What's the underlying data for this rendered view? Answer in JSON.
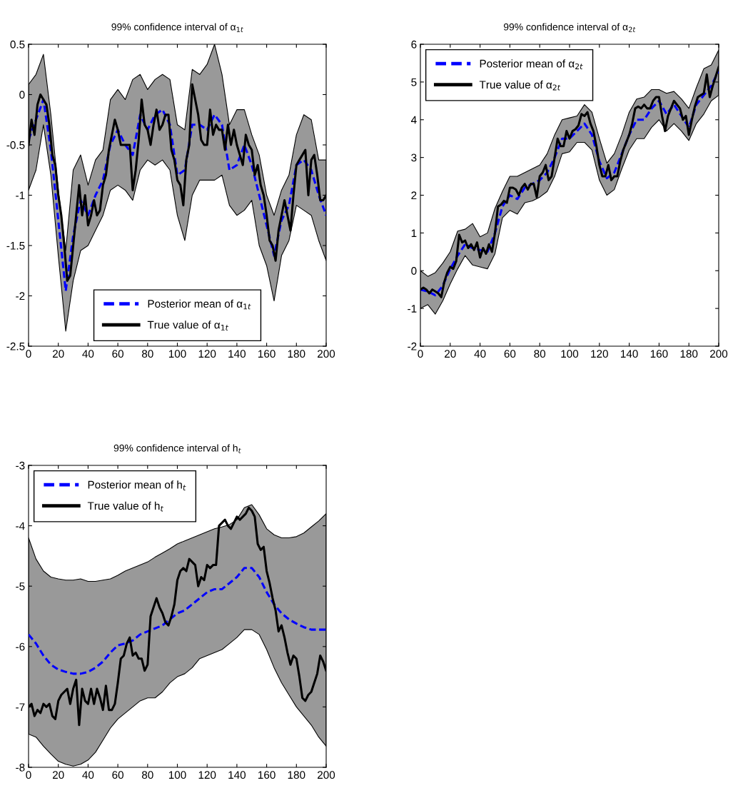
{
  "chart_data": [
    {
      "type": "line",
      "title": "99% confidence interval of α$_{1t}$",
      "xlim": [
        0,
        200
      ],
      "ylim": [
        -2.5,
        0.5
      ],
      "xticks": [
        0,
        20,
        40,
        60,
        80,
        100,
        120,
        140,
        160,
        180,
        200
      ],
      "yticks": [
        -2.5,
        -2,
        -1.5,
        -1,
        -0.5,
        0,
        0.5
      ],
      "legend": "bottom",
      "grid": false,
      "series": [
        {
          "name": "Posterior mean of α$_{1t}$",
          "color": "#0000ff",
          "line_style": "dashed",
          "x": [
            0,
            5,
            10,
            15,
            20,
            25,
            30,
            35,
            40,
            45,
            50,
            55,
            60,
            65,
            70,
            75,
            80,
            85,
            90,
            95,
            100,
            105,
            110,
            115,
            120,
            125,
            130,
            135,
            140,
            145,
            150,
            155,
            160,
            165,
            170,
            175,
            180,
            185,
            190,
            195,
            200
          ],
          "values": [
            -0.45,
            -0.25,
            -0.05,
            -0.55,
            -1.25,
            -1.95,
            -1.4,
            -1.05,
            -1.2,
            -1.0,
            -0.85,
            -0.5,
            -0.35,
            -0.5,
            -0.6,
            -0.2,
            -0.35,
            -0.2,
            -0.15,
            -0.3,
            -0.8,
            -0.75,
            -0.3,
            -0.3,
            -0.35,
            -0.2,
            -0.3,
            -0.75,
            -0.7,
            -0.5,
            -0.7,
            -1.0,
            -1.3,
            -1.6,
            -1.25,
            -1.1,
            -0.7,
            -0.65,
            -0.75,
            -1.0,
            -1.2
          ],
          "upper": [
            0.1,
            0.2,
            0.4,
            -0.2,
            -0.95,
            -1.55,
            -0.75,
            -0.6,
            -0.9,
            -0.65,
            -0.55,
            -0.05,
            0.05,
            -0.05,
            0.15,
            0.2,
            0.05,
            0.15,
            0.2,
            0.15,
            -0.3,
            -0.35,
            0.25,
            0.2,
            0.3,
            0.5,
            0.2,
            -0.3,
            -0.15,
            -0.15,
            -0.4,
            -0.6,
            -1.0,
            -1.2,
            -0.95,
            -0.8,
            -0.4,
            -0.2,
            -0.25,
            -0.65,
            -0.65
          ],
          "lower": [
            -0.95,
            -0.75,
            -0.3,
            -0.8,
            -1.6,
            -2.35,
            -1.85,
            -1.55,
            -1.5,
            -1.35,
            -1.2,
            -0.95,
            -0.9,
            -0.95,
            -1.05,
            -0.75,
            -0.65,
            -0.7,
            -0.65,
            -0.75,
            -1.2,
            -1.45,
            -1.0,
            -0.85,
            -0.85,
            -0.85,
            -0.8,
            -1.1,
            -1.2,
            -1.15,
            -1.05,
            -1.5,
            -1.7,
            -2.05,
            -1.6,
            -1.45,
            -1.1,
            -1.15,
            -1.2,
            -1.45,
            -1.65
          ]
        },
        {
          "name": "True value of α$_{1t}$",
          "color": "#000000",
          "line_style": "solid",
          "x": [
            0,
            2,
            4,
            6,
            8,
            10,
            12,
            14,
            16,
            18,
            20,
            22,
            24,
            26,
            28,
            30,
            32,
            34,
            36,
            38,
            40,
            42,
            44,
            46,
            48,
            50,
            52,
            54,
            56,
            58,
            60,
            62,
            64,
            66,
            68,
            70,
            72,
            74,
            76,
            78,
            80,
            82,
            84,
            86,
            88,
            90,
            92,
            94,
            96,
            98,
            100,
            102,
            104,
            106,
            108,
            110,
            112,
            114,
            116,
            118,
            120,
            122,
            124,
            126,
            128,
            130,
            132,
            134,
            136,
            138,
            140,
            142,
            144,
            146,
            148,
            150,
            152,
            154,
            156,
            158,
            160,
            162,
            164,
            166,
            168,
            170,
            172,
            174,
            176,
            178,
            180,
            182,
            184,
            186,
            188,
            190,
            192,
            194,
            196,
            198,
            200
          ],
          "values": [
            -0.5,
            -0.25,
            -0.4,
            -0.1,
            0.0,
            -0.05,
            -0.1,
            -0.3,
            -0.6,
            -0.7,
            -1.0,
            -1.2,
            -1.5,
            -1.85,
            -1.8,
            -1.5,
            -1.2,
            -0.9,
            -1.2,
            -1.0,
            -1.3,
            -1.2,
            -1.05,
            -1.2,
            -1.15,
            -0.9,
            -0.8,
            -0.55,
            -0.4,
            -0.25,
            -0.35,
            -0.5,
            -0.5,
            -0.5,
            -0.5,
            -0.95,
            -0.75,
            -0.45,
            -0.05,
            -0.3,
            -0.35,
            -0.5,
            -0.3,
            -0.15,
            -0.35,
            -0.3,
            -0.2,
            -0.2,
            -0.55,
            -0.65,
            -0.85,
            -0.9,
            -1.1,
            -0.65,
            -0.5,
            0.1,
            -0.05,
            -0.2,
            -0.45,
            -0.5,
            -0.5,
            -0.15,
            -0.4,
            -0.3,
            -0.35,
            -0.35,
            -0.55,
            -0.3,
            -0.5,
            -0.35,
            -0.5,
            -0.6,
            -0.7,
            -0.4,
            -0.5,
            -0.55,
            -0.8,
            -0.7,
            -0.9,
            -1.0,
            -1.2,
            -1.45,
            -1.5,
            -1.65,
            -1.35,
            -1.2,
            -1.05,
            -1.2,
            -1.35,
            -1.0,
            -0.7,
            -0.65,
            -0.6,
            -0.55,
            -1.0,
            -0.65,
            -0.6,
            -0.8,
            -1.05,
            -1.05,
            -1.0
          ]
        }
      ]
    },
    {
      "type": "line",
      "title": "99% confidence interval of α$_{2t}$",
      "xlim": [
        0,
        200
      ],
      "ylim": [
        -2,
        6
      ],
      "xticks": [
        0,
        20,
        40,
        60,
        80,
        100,
        120,
        140,
        160,
        180,
        200
      ],
      "yticks": [
        -2,
        -1,
        0,
        1,
        2,
        3,
        4,
        5,
        6
      ],
      "legend": "top left",
      "grid": false,
      "series": [
        {
          "name": "Posterior mean of α$_{2t}$",
          "color": "#0000ff",
          "line_style": "dashed",
          "x": [
            0,
            5,
            10,
            15,
            20,
            25,
            30,
            35,
            40,
            45,
            50,
            55,
            60,
            65,
            70,
            75,
            80,
            85,
            90,
            95,
            100,
            105,
            110,
            115,
            120,
            125,
            130,
            135,
            140,
            145,
            150,
            155,
            160,
            165,
            170,
            175,
            180,
            185,
            190,
            195,
            200
          ],
          "values": [
            -0.5,
            -0.55,
            -0.65,
            -0.4,
            0.05,
            0.4,
            0.7,
            0.6,
            0.55,
            0.5,
            1.0,
            1.7,
            2.0,
            1.9,
            2.2,
            2.3,
            2.4,
            2.6,
            3.0,
            3.5,
            3.5,
            3.7,
            3.9,
            3.6,
            2.9,
            2.45,
            2.6,
            3.1,
            3.6,
            4.0,
            4.0,
            4.3,
            4.5,
            4.15,
            4.4,
            4.1,
            3.8,
            4.4,
            4.65,
            4.9,
            5.3
          ],
          "upper": [
            0.0,
            -0.15,
            -0.05,
            0.2,
            0.5,
            1.05,
            1.1,
            1.25,
            0.9,
            1.0,
            1.65,
            2.1,
            2.5,
            2.5,
            2.6,
            2.7,
            2.8,
            3.1,
            3.6,
            4.0,
            4.05,
            4.1,
            4.4,
            4.2,
            3.5,
            2.85,
            3.1,
            3.6,
            4.2,
            4.55,
            4.6,
            4.8,
            4.8,
            4.7,
            4.75,
            4.55,
            4.3,
            4.85,
            5.35,
            5.45,
            5.85
          ],
          "lower": [
            -1.0,
            -0.9,
            -1.15,
            -0.8,
            -0.35,
            0.05,
            0.4,
            0.15,
            0.1,
            0.05,
            0.45,
            1.4,
            1.6,
            1.5,
            1.8,
            1.85,
            1.95,
            2.1,
            2.5,
            3.1,
            3.15,
            3.4,
            3.4,
            3.2,
            2.4,
            2.0,
            2.15,
            2.7,
            3.2,
            3.5,
            3.5,
            3.8,
            4.0,
            3.7,
            3.9,
            3.7,
            3.45,
            3.9,
            4.15,
            4.5,
            4.65
          ]
        },
        {
          "name": "True value of α$_{2t}$",
          "color": "#000000",
          "line_style": "solid",
          "x": [
            0,
            2,
            4,
            6,
            8,
            10,
            12,
            14,
            16,
            18,
            20,
            22,
            24,
            26,
            28,
            30,
            32,
            34,
            36,
            38,
            40,
            42,
            44,
            46,
            48,
            50,
            52,
            54,
            56,
            58,
            60,
            62,
            64,
            66,
            68,
            70,
            72,
            74,
            76,
            78,
            80,
            82,
            84,
            86,
            88,
            90,
            92,
            94,
            96,
            98,
            100,
            102,
            104,
            106,
            108,
            110,
            112,
            114,
            116,
            118,
            120,
            122,
            124,
            126,
            128,
            130,
            132,
            134,
            136,
            138,
            140,
            142,
            144,
            146,
            148,
            150,
            152,
            154,
            156,
            158,
            160,
            162,
            164,
            166,
            168,
            170,
            172,
            174,
            176,
            178,
            180,
            182,
            184,
            186,
            188,
            190,
            192,
            194,
            196,
            198,
            200
          ],
          "values": [
            -0.5,
            -0.45,
            -0.5,
            -0.6,
            -0.5,
            -0.55,
            -0.6,
            -0.7,
            -0.3,
            -0.05,
            0.1,
            0.05,
            0.25,
            0.95,
            0.75,
            0.8,
            0.6,
            0.7,
            0.55,
            0.75,
            0.35,
            0.6,
            0.45,
            0.7,
            0.5,
            1.0,
            1.7,
            1.75,
            1.85,
            1.8,
            2.2,
            2.2,
            2.15,
            2.0,
            2.2,
            2.3,
            2.15,
            2.3,
            2.3,
            1.95,
            2.5,
            2.6,
            2.8,
            2.4,
            2.5,
            3.0,
            3.5,
            3.3,
            3.3,
            3.7,
            3.5,
            3.7,
            3.75,
            3.85,
            4.15,
            4.1,
            4.2,
            3.9,
            3.7,
            3.3,
            2.8,
            2.5,
            2.5,
            2.8,
            2.4,
            2.5,
            2.5,
            2.9,
            3.2,
            3.4,
            3.6,
            3.9,
            4.3,
            4.35,
            4.3,
            4.4,
            4.3,
            4.3,
            4.5,
            4.6,
            4.6,
            4.1,
            3.7,
            4.1,
            4.3,
            4.5,
            4.4,
            4.3,
            4.0,
            4.1,
            3.6,
            4.0,
            4.35,
            4.6,
            4.65,
            4.7,
            5.2,
            4.6,
            4.9,
            5.15,
            5.4
          ]
        }
      ]
    },
    {
      "type": "line",
      "title": "99% confidence interval of h$_{t}$",
      "xlim": [
        0,
        200
      ],
      "ylim": [
        -8,
        -3
      ],
      "xticks": [
        0,
        20,
        40,
        60,
        80,
        100,
        120,
        140,
        160,
        180,
        200
      ],
      "yticks": [
        -8,
        -7,
        -6,
        -5,
        -4,
        -3
      ],
      "legend": "top left",
      "grid": false,
      "series": [
        {
          "name": "Posterior mean of h$_{t}$",
          "color": "#0000ff",
          "line_style": "dashed",
          "x": [
            0,
            5,
            10,
            15,
            20,
            25,
            30,
            35,
            40,
            45,
            50,
            55,
            60,
            65,
            70,
            75,
            80,
            85,
            90,
            95,
            100,
            105,
            110,
            115,
            120,
            125,
            130,
            135,
            140,
            145,
            150,
            155,
            160,
            165,
            170,
            175,
            180,
            185,
            190,
            195,
            200
          ],
          "values": [
            -5.8,
            -5.95,
            -6.15,
            -6.3,
            -6.38,
            -6.42,
            -6.45,
            -6.45,
            -6.42,
            -6.35,
            -6.25,
            -6.1,
            -5.98,
            -5.95,
            -5.9,
            -5.8,
            -5.75,
            -5.7,
            -5.65,
            -5.55,
            -5.45,
            -5.4,
            -5.3,
            -5.2,
            -5.1,
            -5.05,
            -5.05,
            -4.95,
            -4.85,
            -4.7,
            -4.7,
            -4.85,
            -5.1,
            -5.3,
            -5.45,
            -5.55,
            -5.62,
            -5.68,
            -5.72,
            -5.72,
            -5.72
          ],
          "upper": [
            -4.2,
            -4.55,
            -4.75,
            -4.85,
            -4.88,
            -4.9,
            -4.9,
            -4.88,
            -4.92,
            -4.92,
            -4.9,
            -4.88,
            -4.82,
            -4.75,
            -4.7,
            -4.65,
            -4.6,
            -4.52,
            -4.45,
            -4.38,
            -4.3,
            -4.25,
            -4.2,
            -4.15,
            -4.1,
            -4.05,
            -4.02,
            -3.98,
            -3.9,
            -3.7,
            -3.65,
            -3.82,
            -4.05,
            -4.15,
            -4.2,
            -4.2,
            -4.18,
            -4.12,
            -4.02,
            -3.92,
            -3.8
          ],
          "lower": [
            -7.45,
            -7.5,
            -7.65,
            -7.78,
            -7.9,
            -7.95,
            -7.98,
            -7.95,
            -7.88,
            -7.75,
            -7.55,
            -7.35,
            -7.2,
            -7.1,
            -7.0,
            -6.9,
            -6.85,
            -6.85,
            -6.75,
            -6.6,
            -6.5,
            -6.45,
            -6.35,
            -6.2,
            -6.15,
            -6.1,
            -6.05,
            -5.95,
            -5.85,
            -5.72,
            -5.72,
            -5.8,
            -6.05,
            -6.35,
            -6.6,
            -6.8,
            -7.0,
            -7.15,
            -7.3,
            -7.5,
            -7.65
          ]
        },
        {
          "name": "True value of h$_{t}$",
          "color": "#000000",
          "line_style": "solid",
          "x": [
            0,
            2,
            4,
            6,
            8,
            10,
            12,
            14,
            16,
            18,
            20,
            22,
            24,
            26,
            28,
            30,
            32,
            34,
            36,
            38,
            40,
            42,
            44,
            46,
            48,
            50,
            52,
            54,
            56,
            58,
            60,
            62,
            64,
            66,
            68,
            70,
            72,
            74,
            76,
            78,
            80,
            82,
            84,
            86,
            88,
            90,
            92,
            94,
            96,
            98,
            100,
            102,
            104,
            106,
            108,
            110,
            112,
            114,
            116,
            118,
            120,
            122,
            124,
            126,
            128,
            130,
            132,
            134,
            136,
            138,
            140,
            142,
            144,
            146,
            148,
            150,
            152,
            154,
            156,
            158,
            160,
            162,
            164,
            166,
            168,
            170,
            172,
            174,
            176,
            178,
            180,
            182,
            184,
            186,
            188,
            190,
            192,
            194,
            196,
            198,
            200
          ],
          "values": [
            -7.0,
            -6.95,
            -7.15,
            -7.05,
            -7.1,
            -6.95,
            -7.0,
            -6.95,
            -7.15,
            -7.2,
            -6.9,
            -6.8,
            -6.75,
            -6.7,
            -6.95,
            -6.7,
            -6.55,
            -7.3,
            -6.7,
            -6.9,
            -6.95,
            -6.7,
            -6.95,
            -6.7,
            -6.85,
            -7.05,
            -6.65,
            -7.05,
            -7.05,
            -6.95,
            -6.6,
            -6.2,
            -6.15,
            -5.95,
            -5.85,
            -6.15,
            -6.1,
            -6.2,
            -6.2,
            -6.4,
            -6.3,
            -5.5,
            -5.35,
            -5.2,
            -5.35,
            -5.45,
            -5.6,
            -5.65,
            -5.5,
            -5.3,
            -4.9,
            -4.75,
            -4.7,
            -4.75,
            -4.55,
            -4.6,
            -4.65,
            -5.0,
            -4.85,
            -4.9,
            -4.65,
            -4.7,
            -4.65,
            -4.65,
            -4.0,
            -3.95,
            -3.9,
            -4.0,
            -4.05,
            -3.95,
            -3.85,
            -3.9,
            -3.85,
            -3.8,
            -3.7,
            -3.75,
            -3.85,
            -4.3,
            -4.4,
            -4.35,
            -4.75,
            -4.95,
            -5.2,
            -5.4,
            -5.75,
            -5.65,
            -5.85,
            -6.1,
            -6.3,
            -6.15,
            -6.2,
            -6.5,
            -6.85,
            -6.9,
            -6.8,
            -6.75,
            -6.6,
            -6.45,
            -6.15,
            -6.25,
            -6.4
          ]
        }
      ]
    }
  ]
}
